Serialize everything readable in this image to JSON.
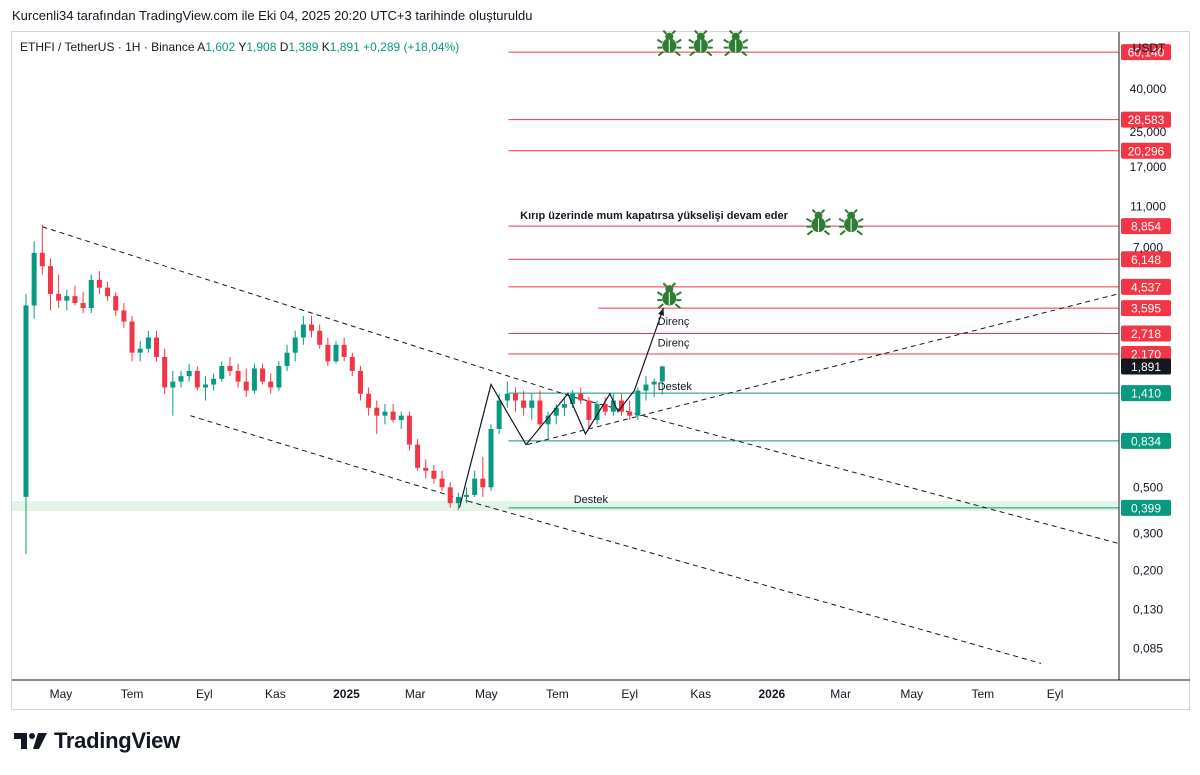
{
  "caption": "Kurcenli34 tarafından TradingView.com ile Eki 04, 2025 20:20 UTC+3 tarihinde oluşturuldu",
  "brand": {
    "name": "TradingView",
    "icon": "tradingview-logo-icon"
  },
  "chart_data": {
    "type": "candlestick",
    "symbol": "ETHFI / TetherUS · 1H · Binance",
    "ohlc": {
      "open_label": "A",
      "open": "1,602",
      "high_label": "Y",
      "high": "1,908",
      "low_label": "D",
      "low": "1,389",
      "close_label": "K",
      "close": "1,891",
      "change": "+0,289 (+18,04%)"
    },
    "currency": "USDT",
    "yscale": "log",
    "ylim": [
      0.06,
      75
    ],
    "xlim": [
      "2024-03-20",
      "2026-10-25"
    ],
    "y_ticks": [
      {
        "label": "40,000",
        "value": 40
      },
      {
        "label": "25,000",
        "value": 25
      },
      {
        "label": "17,000",
        "value": 17
      },
      {
        "label": "11,000",
        "value": 11
      },
      {
        "label": "7,000",
        "value": 7
      },
      {
        "label": "0,500",
        "value": 0.5
      },
      {
        "label": "0,300",
        "value": 0.3
      },
      {
        "label": "0,200",
        "value": 0.2
      },
      {
        "label": "0,130",
        "value": 0.13
      },
      {
        "label": "0,085",
        "value": 0.085
      }
    ],
    "x_ticks": [
      {
        "label": "May",
        "date": "2024-05-01",
        "bold": false
      },
      {
        "label": "Tem",
        "date": "2024-07-01",
        "bold": false
      },
      {
        "label": "Eyl",
        "date": "2024-09-01",
        "bold": false
      },
      {
        "label": "Kas",
        "date": "2024-11-01",
        "bold": false
      },
      {
        "label": "2025",
        "date": "2025-01-01",
        "bold": true
      },
      {
        "label": "Mar",
        "date": "2025-03-01",
        "bold": false
      },
      {
        "label": "May",
        "date": "2025-05-01",
        "bold": false
      },
      {
        "label": "Tem",
        "date": "2025-07-01",
        "bold": false
      },
      {
        "label": "Eyl",
        "date": "2025-09-01",
        "bold": false
      },
      {
        "label": "Kas",
        "date": "2025-11-01",
        "bold": false
      },
      {
        "label": "2026",
        "date": "2026-01-01",
        "bold": true
      },
      {
        "label": "Mar",
        "date": "2026-03-01",
        "bold": false
      },
      {
        "label": "May",
        "date": "2026-05-01",
        "bold": false
      },
      {
        "label": "Tem",
        "date": "2026-07-01",
        "bold": false
      },
      {
        "label": "Eyl",
        "date": "2026-09-01",
        "bold": false
      }
    ],
    "price_levels": [
      {
        "label": "60,140",
        "value": 60.14,
        "color": "#f23645",
        "from": "2025-05-20"
      },
      {
        "label": "28,583",
        "value": 28.583,
        "color": "#f23645",
        "from": "2025-05-20"
      },
      {
        "label": "20,296",
        "value": 20.296,
        "color": "#f23645",
        "from": "2025-05-20"
      },
      {
        "label": "8,854",
        "value": 8.854,
        "color": "#f23645",
        "from": "2025-05-20"
      },
      {
        "label": "6,148",
        "value": 6.148,
        "color": "#f23645",
        "from": "2025-05-20"
      },
      {
        "label": "4,537",
        "value": 4.537,
        "color": "#f23645",
        "from": "2025-05-20"
      },
      {
        "label": "3,595",
        "value": 3.595,
        "color": "#f23645",
        "from": "2025-08-05"
      },
      {
        "label": "2,718",
        "value": 2.718,
        "color": "#f23645",
        "from": "2025-05-20"
      },
      {
        "label": "2,170",
        "value": 2.17,
        "color": "#f23645",
        "from": "2025-05-20"
      },
      {
        "label": "1,410",
        "value": 1.41,
        "color": "#089981",
        "from": "2025-05-20"
      },
      {
        "label": "0,834",
        "value": 0.834,
        "color": "#089981",
        "from": "2025-05-20"
      },
      {
        "label": "0,399",
        "value": 0.399,
        "color": "#089981",
        "from": "2025-05-20"
      }
    ],
    "last_price": {
      "label": "1,891",
      "value": 1.891
    },
    "support_zone": {
      "low": 0.385,
      "high": 0.43
    },
    "annotations": [
      {
        "text": "Kırıp üzerinde mum kapatırsa yükselişi devam eder",
        "date": "2025-05-30",
        "value": 9.6,
        "bold": true
      },
      {
        "text": "Direnç",
        "date": "2025-09-25",
        "value": 2.98,
        "bold": false
      },
      {
        "text": "Direnç",
        "date": "2025-09-25",
        "value": 2.35,
        "bold": false
      },
      {
        "text": "Destek",
        "date": "2025-09-25",
        "value": 1.46,
        "bold": false
      },
      {
        "text": "Destek",
        "date": "2025-07-15",
        "value": 0.42,
        "bold": false
      }
    ],
    "bull_icons": [
      {
        "date": "2025-10-05",
        "value": 66
      },
      {
        "date": "2025-11-01",
        "value": 66
      },
      {
        "date": "2025-12-01",
        "value": 66
      },
      {
        "date": "2026-02-10",
        "value": 9.2
      },
      {
        "date": "2026-03-10",
        "value": 9.2
      },
      {
        "date": "2025-10-05",
        "value": 4.1
      }
    ],
    "channel_lines": [
      {
        "name": "channel-upper",
        "from": [
          "2024-04-15",
          8.8
        ],
        "to": [
          "2025-07-15",
          1.35
        ],
        "dashed": true
      },
      {
        "name": "channel-upper-ext",
        "from": [
          "2025-07-15",
          1.35
        ],
        "to": [
          "2026-10-25",
          0.27
        ],
        "dashed": true
      },
      {
        "name": "channel-lower",
        "from": [
          "2024-08-20",
          1.1
        ],
        "to": [
          "2025-04-15",
          0.43
        ],
        "dashed": true
      },
      {
        "name": "channel-lower-ext",
        "from": [
          "2025-04-15",
          0.43
        ],
        "to": [
          "2026-08-20",
          0.072
        ],
        "dashed": true
      },
      {
        "name": "trend-support",
        "from": [
          "2025-06-05",
          0.8
        ],
        "to": [
          "2026-10-25",
          4.2
        ],
        "dashed": true
      }
    ],
    "path_lines": [
      {
        "name": "zigzag",
        "points": [
          [
            "2025-04-08",
            0.4
          ],
          [
            "2025-05-05",
            1.55
          ],
          [
            "2025-06-04",
            0.8
          ],
          [
            "2025-07-10",
            1.4
          ],
          [
            "2025-07-25",
            0.9
          ],
          [
            "2025-08-15",
            1.4
          ],
          [
            "2025-08-22",
            1.15
          ],
          [
            "2025-09-05",
            1.45
          ],
          [
            "2025-09-30",
            3.6
          ]
        ]
      }
    ],
    "candles": [
      {
        "date": "2024-04-01",
        "o": 0.45,
        "h": 4.2,
        "l": 0.24,
        "c": 3.7
      },
      {
        "date": "2024-04-08",
        "o": 3.7,
        "h": 7.5,
        "l": 3.2,
        "c": 6.6
      },
      {
        "date": "2024-04-15",
        "o": 6.6,
        "h": 9.0,
        "l": 5.2,
        "c": 5.7
      },
      {
        "date": "2024-04-22",
        "o": 5.7,
        "h": 6.2,
        "l": 3.5,
        "c": 4.2
      },
      {
        "date": "2024-04-29",
        "o": 4.2,
        "h": 5.2,
        "l": 3.6,
        "c": 3.9
      },
      {
        "date": "2024-05-06",
        "o": 3.9,
        "h": 4.4,
        "l": 3.5,
        "c": 4.1
      },
      {
        "date": "2024-05-13",
        "o": 4.1,
        "h": 4.6,
        "l": 3.7,
        "c": 3.8
      },
      {
        "date": "2024-05-20",
        "o": 3.8,
        "h": 4.3,
        "l": 3.4,
        "c": 3.6
      },
      {
        "date": "2024-05-27",
        "o": 3.6,
        "h": 5.2,
        "l": 3.4,
        "c": 4.9
      },
      {
        "date": "2024-06-03",
        "o": 4.9,
        "h": 5.4,
        "l": 4.2,
        "c": 4.5
      },
      {
        "date": "2024-06-10",
        "o": 4.5,
        "h": 4.8,
        "l": 3.9,
        "c": 4.1
      },
      {
        "date": "2024-06-17",
        "o": 4.1,
        "h": 4.3,
        "l": 3.3,
        "c": 3.5
      },
      {
        "date": "2024-06-24",
        "o": 3.5,
        "h": 3.8,
        "l": 2.9,
        "c": 3.1
      },
      {
        "date": "2024-07-01",
        "o": 3.1,
        "h": 3.3,
        "l": 2.0,
        "c": 2.2
      },
      {
        "date": "2024-07-08",
        "o": 2.2,
        "h": 2.5,
        "l": 2.0,
        "c": 2.3
      },
      {
        "date": "2024-07-15",
        "o": 2.3,
        "h": 2.8,
        "l": 2.2,
        "c": 2.6
      },
      {
        "date": "2024-07-22",
        "o": 2.6,
        "h": 2.8,
        "l": 2.0,
        "c": 2.1
      },
      {
        "date": "2024-07-29",
        "o": 2.1,
        "h": 2.3,
        "l": 1.4,
        "c": 1.5
      },
      {
        "date": "2024-08-05",
        "o": 1.5,
        "h": 1.8,
        "l": 1.1,
        "c": 1.6
      },
      {
        "date": "2024-08-12",
        "o": 1.6,
        "h": 1.8,
        "l": 1.5,
        "c": 1.7
      },
      {
        "date": "2024-08-19",
        "o": 1.7,
        "h": 1.95,
        "l": 1.6,
        "c": 1.8
      },
      {
        "date": "2024-08-26",
        "o": 1.8,
        "h": 1.9,
        "l": 1.45,
        "c": 1.5
      },
      {
        "date": "2024-09-02",
        "o": 1.5,
        "h": 1.7,
        "l": 1.3,
        "c": 1.55
      },
      {
        "date": "2024-09-09",
        "o": 1.55,
        "h": 1.75,
        "l": 1.45,
        "c": 1.65
      },
      {
        "date": "2024-09-16",
        "o": 1.65,
        "h": 2.0,
        "l": 1.6,
        "c": 1.9
      },
      {
        "date": "2024-09-23",
        "o": 1.9,
        "h": 2.1,
        "l": 1.7,
        "c": 1.8
      },
      {
        "date": "2024-09-30",
        "o": 1.8,
        "h": 1.95,
        "l": 1.5,
        "c": 1.6
      },
      {
        "date": "2024-10-07",
        "o": 1.6,
        "h": 1.85,
        "l": 1.35,
        "c": 1.45
      },
      {
        "date": "2024-10-14",
        "o": 1.45,
        "h": 1.95,
        "l": 1.4,
        "c": 1.85
      },
      {
        "date": "2024-10-21",
        "o": 1.85,
        "h": 1.95,
        "l": 1.55,
        "c": 1.6
      },
      {
        "date": "2024-10-28",
        "o": 1.6,
        "h": 1.75,
        "l": 1.4,
        "c": 1.5
      },
      {
        "date": "2024-11-04",
        "o": 1.5,
        "h": 2.0,
        "l": 1.45,
        "c": 1.9
      },
      {
        "date": "2024-11-11",
        "o": 1.9,
        "h": 2.4,
        "l": 1.8,
        "c": 2.2
      },
      {
        "date": "2024-11-18",
        "o": 2.2,
        "h": 2.8,
        "l": 2.0,
        "c": 2.6
      },
      {
        "date": "2024-11-25",
        "o": 2.6,
        "h": 3.3,
        "l": 2.4,
        "c": 3.0
      },
      {
        "date": "2024-12-02",
        "o": 3.0,
        "h": 3.3,
        "l": 2.6,
        "c": 2.8
      },
      {
        "date": "2024-12-09",
        "o": 2.8,
        "h": 3.0,
        "l": 2.3,
        "c": 2.4
      },
      {
        "date": "2024-12-16",
        "o": 2.4,
        "h": 2.6,
        "l": 1.9,
        "c": 2.0
      },
      {
        "date": "2024-12-23",
        "o": 2.0,
        "h": 2.5,
        "l": 1.95,
        "c": 2.4
      },
      {
        "date": "2024-12-30",
        "o": 2.4,
        "h": 2.6,
        "l": 2.0,
        "c": 2.1
      },
      {
        "date": "2025-01-06",
        "o": 2.1,
        "h": 2.2,
        "l": 1.7,
        "c": 1.8
      },
      {
        "date": "2025-01-13",
        "o": 1.8,
        "h": 1.9,
        "l": 1.3,
        "c": 1.4
      },
      {
        "date": "2025-01-20",
        "o": 1.4,
        "h": 1.5,
        "l": 1.1,
        "c": 1.2
      },
      {
        "date": "2025-01-27",
        "o": 1.2,
        "h": 1.3,
        "l": 0.9,
        "c": 1.1
      },
      {
        "date": "2025-02-03",
        "o": 1.1,
        "h": 1.25,
        "l": 1.0,
        "c": 1.15
      },
      {
        "date": "2025-02-10",
        "o": 1.15,
        "h": 1.25,
        "l": 1.02,
        "c": 1.05
      },
      {
        "date": "2025-02-17",
        "o": 1.05,
        "h": 1.15,
        "l": 0.95,
        "c": 1.1
      },
      {
        "date": "2025-02-24",
        "o": 1.1,
        "h": 1.15,
        "l": 0.75,
        "c": 0.8
      },
      {
        "date": "2025-03-03",
        "o": 0.8,
        "h": 0.85,
        "l": 0.6,
        "c": 0.62
      },
      {
        "date": "2025-03-10",
        "o": 0.62,
        "h": 0.68,
        "l": 0.55,
        "c": 0.6
      },
      {
        "date": "2025-03-17",
        "o": 0.6,
        "h": 0.64,
        "l": 0.52,
        "c": 0.55
      },
      {
        "date": "2025-03-24",
        "o": 0.55,
        "h": 0.6,
        "l": 0.48,
        "c": 0.5
      },
      {
        "date": "2025-03-31",
        "o": 0.5,
        "h": 0.53,
        "l": 0.4,
        "c": 0.42
      },
      {
        "date": "2025-04-07",
        "o": 0.42,
        "h": 0.47,
        "l": 0.39,
        "c": 0.45
      },
      {
        "date": "2025-04-14",
        "o": 0.45,
        "h": 0.5,
        "l": 0.42,
        "c": 0.46
      },
      {
        "date": "2025-04-21",
        "o": 0.46,
        "h": 0.6,
        "l": 0.45,
        "c": 0.55
      },
      {
        "date": "2025-04-28",
        "o": 0.55,
        "h": 0.7,
        "l": 0.45,
        "c": 0.5
      },
      {
        "date": "2025-05-05",
        "o": 0.5,
        "h": 1.0,
        "l": 0.48,
        "c": 0.95
      },
      {
        "date": "2025-05-12",
        "o": 0.95,
        "h": 1.4,
        "l": 0.9,
        "c": 1.3
      },
      {
        "date": "2025-05-19",
        "o": 1.3,
        "h": 1.6,
        "l": 1.2,
        "c": 1.4
      },
      {
        "date": "2025-05-26",
        "o": 1.4,
        "h": 1.5,
        "l": 1.15,
        "c": 1.3
      },
      {
        "date": "2025-06-02",
        "o": 1.3,
        "h": 1.45,
        "l": 1.1,
        "c": 1.2
      },
      {
        "date": "2025-06-09",
        "o": 1.2,
        "h": 1.4,
        "l": 1.05,
        "c": 1.3
      },
      {
        "date": "2025-06-16",
        "o": 1.3,
        "h": 1.45,
        "l": 0.95,
        "c": 1.0
      },
      {
        "date": "2025-06-23",
        "o": 1.0,
        "h": 1.15,
        "l": 0.85,
        "c": 1.1
      },
      {
        "date": "2025-06-30",
        "o": 1.1,
        "h": 1.25,
        "l": 1.0,
        "c": 1.2
      },
      {
        "date": "2025-07-07",
        "o": 1.2,
        "h": 1.35,
        "l": 1.1,
        "c": 1.25
      },
      {
        "date": "2025-07-14",
        "o": 1.25,
        "h": 1.45,
        "l": 1.2,
        "c": 1.4
      },
      {
        "date": "2025-07-21",
        "o": 1.4,
        "h": 1.5,
        "l": 1.25,
        "c": 1.3
      },
      {
        "date": "2025-07-28",
        "o": 1.3,
        "h": 1.35,
        "l": 0.95,
        "c": 1.05
      },
      {
        "date": "2025-08-04",
        "o": 1.05,
        "h": 1.3,
        "l": 1.0,
        "c": 1.25
      },
      {
        "date": "2025-08-11",
        "o": 1.25,
        "h": 1.35,
        "l": 1.1,
        "c": 1.15
      },
      {
        "date": "2025-08-18",
        "o": 1.15,
        "h": 1.4,
        "l": 1.1,
        "c": 1.3
      },
      {
        "date": "2025-08-25",
        "o": 1.3,
        "h": 1.4,
        "l": 1.1,
        "c": 1.15
      },
      {
        "date": "2025-09-01",
        "o": 1.15,
        "h": 1.3,
        "l": 1.05,
        "c": 1.1
      },
      {
        "date": "2025-09-08",
        "o": 1.1,
        "h": 1.5,
        "l": 1.05,
        "c": 1.45
      },
      {
        "date": "2025-09-15",
        "o": 1.45,
        "h": 1.7,
        "l": 1.3,
        "c": 1.55
      },
      {
        "date": "2025-09-22",
        "o": 1.55,
        "h": 1.65,
        "l": 1.35,
        "c": 1.6
      },
      {
        "date": "2025-09-29",
        "o": 1.602,
        "h": 1.908,
        "l": 1.389,
        "c": 1.891
      }
    ]
  }
}
